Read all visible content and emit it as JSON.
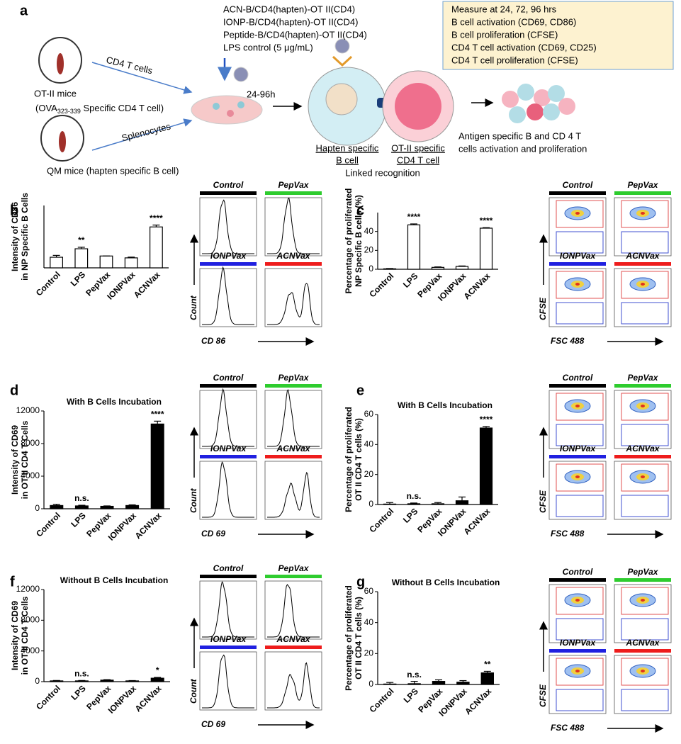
{
  "panel_labels": [
    "a",
    "b",
    "c",
    "d",
    "e",
    "f",
    "g"
  ],
  "panel_a": {
    "treatments": [
      "ACN-B/CD4(hapten)-OT II(CD4)",
      "IONP-B/CD4(hapten)-OT II(CD4)",
      "Peptide-B/CD4(hapten)-OT II(CD4)",
      "LPS control (5 μg/mL)"
    ],
    "measures": [
      "Measure at 24, 72, 96 hrs",
      "B cell activation (CD69, CD86)",
      "B cell proliferation (CFSE)",
      "CD4 T cell activation (CD69, CD25)",
      "CD4 T cell proliferation (CFSE)"
    ],
    "ot2_mice": "OT-II mice",
    "ot2_desc": {
      "main": "(OVA",
      "sub": "323-339",
      "rest": " Specific CD4 T cell)"
    },
    "cd4_arrow": "CD4 T cells",
    "spleno_arrow": "Splenocytes",
    "qm_mice": "QM mice (hapten specific B cell)",
    "time": "24-96h",
    "b_cell": [
      "Hapten specific",
      "B cell"
    ],
    "t_cell": [
      "OT-II specific",
      "CD4 T cell"
    ],
    "linked": "Linked recognition",
    "outcome": [
      "Antigen specific B and CD 4 T",
      "cells activation and proliferation"
    ]
  },
  "flow_panels": [
    {
      "kind": "histogram",
      "labels": [
        "Control",
        "PepVax",
        "IONPVax",
        "ACNVax"
      ],
      "colors": [
        "#000000",
        "#2ecc2e",
        "#2020e0",
        "#ee1c1c"
      ],
      "y_label": "Count",
      "x_label": "CD 86"
    },
    {
      "kind": "scatter",
      "labels": [
        "Control",
        "PepVax",
        "IONPVax",
        "ACNVax"
      ],
      "colors": [
        "#000000",
        "#2ecc2e",
        "#2020e0",
        "#ee1c1c"
      ],
      "y_label": "CFSE",
      "x_label": "FSC 488"
    },
    {
      "kind": "histogram",
      "labels": [
        "Control",
        "PepVax",
        "IONPVax",
        "ACNVax"
      ],
      "colors": [
        "#000000",
        "#2ecc2e",
        "#2020e0",
        "#ee1c1c"
      ],
      "y_label": "Count",
      "x_label": "CD 69"
    },
    {
      "kind": "scatter",
      "labels": [
        "Control",
        "PepVax",
        "IONPVax",
        "ACNVax"
      ],
      "colors": [
        "#000000",
        "#2ecc2e",
        "#2020e0",
        "#ee1c1c"
      ],
      "y_label": "CFSE",
      "x_label": "FSC 488"
    },
    {
      "kind": "histogram",
      "labels": [
        "Control",
        "PepVax",
        "IONPVax",
        "ACNVax"
      ],
      "colors": [
        "#000000",
        "#2ecc2e",
        "#2020e0",
        "#ee1c1c"
      ],
      "y_label": "Count",
      "x_label": "CD 69"
    },
    {
      "kind": "scatter",
      "labels": [
        "Control",
        "PepVax",
        "IONPVax",
        "ACNVax"
      ],
      "colors": [
        "#000000",
        "#2ecc2e",
        "#2020e0",
        "#ee1c1c"
      ],
      "y_label": "CFSE",
      "x_label": "FSC 488"
    }
  ],
  "chart_data": [
    {
      "type": "bar",
      "y_label": [
        "Intensity of CD86",
        "in NP Specific B Cells"
      ],
      "categories": [
        "Control",
        "LPS",
        "PepVax",
        "IONPVax",
        "ACNVax"
      ],
      "values": [
        850,
        1530,
        950,
        800,
        3280
      ],
      "errors": [
        150,
        120,
        0,
        60,
        150
      ],
      "significance": [
        null,
        "**",
        null,
        null,
        "****"
      ],
      "color": "#ffffff",
      "ylim": [
        0,
        5000
      ]
    },
    {
      "type": "bar",
      "y_label": [
        "Percentage of proliferated",
        "NP Specific B cells (%)"
      ],
      "categories": [
        "Control",
        "LPS",
        "PepVax",
        "IONPVax",
        "ACNVax"
      ],
      "values": [
        0.5,
        47,
        2,
        3,
        43.5
      ],
      "errors": [
        0.3,
        1,
        0.5,
        0.5,
        0.5
      ],
      "significance": [
        null,
        "****",
        null,
        null,
        "****"
      ],
      "color": "#ffffff",
      "ylim": [
        0,
        60
      ],
      "yticks": [
        0,
        20,
        40
      ]
    },
    {
      "type": "bar",
      "title": "With B Cells Incubation",
      "y_label": [
        "Intensity of CD69",
        "in OT II CD4 T Cells"
      ],
      "categories": [
        "Control",
        "LPS",
        "PepVax",
        "IONPVax",
        "ACNVax"
      ],
      "values": [
        400,
        350,
        300,
        400,
        10400
      ],
      "errors": [
        150,
        80,
        50,
        80,
        350
      ],
      "significance": [
        null,
        "n.s.",
        null,
        null,
        "****"
      ],
      "color": "#000000",
      "ylim": [
        0,
        12000
      ],
      "yticks": [
        0,
        4000,
        8000,
        12000
      ]
    },
    {
      "type": "bar",
      "title": "With B Cells Incubation",
      "y_label": [
        "Percentage of proliferated",
        "OT II CD4 T cells (%)"
      ],
      "categories": [
        "Control",
        "LPS",
        "PepVax",
        "IONPVax",
        "ACNVax"
      ],
      "values": [
        0.3,
        0.5,
        0.5,
        2.5,
        51
      ],
      "errors": [
        1,
        0.5,
        0.8,
        2.5,
        1
      ],
      "significance": [
        null,
        "n.s.",
        null,
        null,
        "****"
      ],
      "color": "#000000",
      "ylim": [
        0,
        60
      ],
      "yticks": [
        0,
        20,
        40,
        60
      ]
    },
    {
      "type": "bar",
      "title": "Without B Cells Incubation",
      "y_label": [
        "Intensity of CD69",
        "in OT II CD4 T Cells"
      ],
      "categories": [
        "Control",
        "LPS",
        "PepVax",
        "IONPVax",
        "ACNVax"
      ],
      "values": [
        100,
        100,
        200,
        100,
        450
      ],
      "errors": [
        50,
        50,
        60,
        40,
        100
      ],
      "significance": [
        null,
        "n.s.",
        null,
        null,
        "*"
      ],
      "color": "#000000",
      "ylim": [
        0,
        12000
      ],
      "yticks": [
        0,
        4000,
        8000,
        12000
      ]
    },
    {
      "type": "bar",
      "title": "Without B Cells Incubation",
      "y_label": [
        "Percentage of proliferated",
        "OT II CD4 T cells (%)"
      ],
      "categories": [
        "Control",
        "LPS",
        "PepVax",
        "IONPVax",
        "ACNVax"
      ],
      "values": [
        0.3,
        0.5,
        2,
        1.5,
        7.5
      ],
      "errors": [
        1,
        1.5,
        1,
        1,
        1
      ],
      "significance": [
        null,
        "n.s.",
        null,
        null,
        "**"
      ],
      "color": "#000000",
      "ylim": [
        0,
        60
      ],
      "yticks": [
        0,
        20,
        40,
        60
      ]
    }
  ]
}
